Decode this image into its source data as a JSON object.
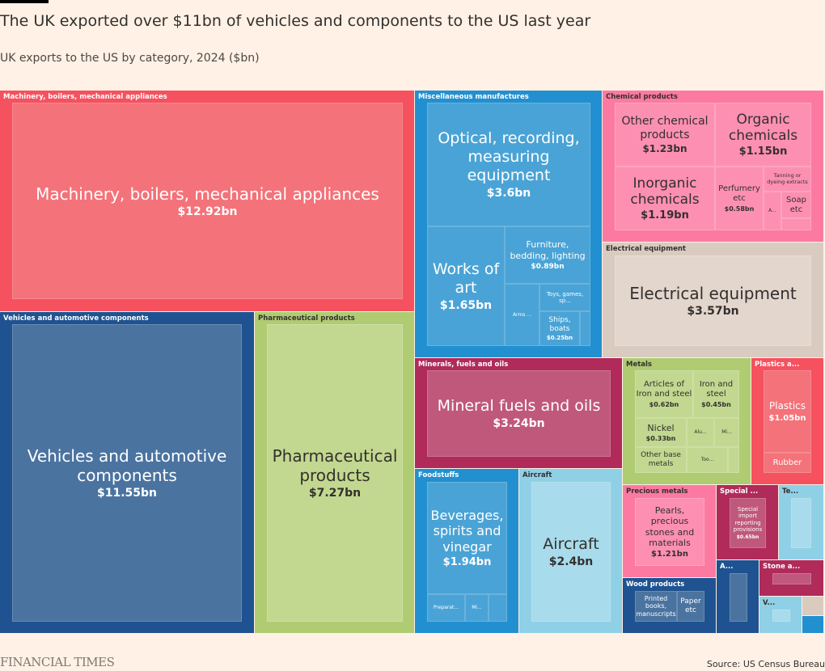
{
  "header": {
    "title": "The UK exported over $11bn of vehicles and components to the US last year",
    "subtitle": "UK exports to the US by category, 2024 ($bn)"
  },
  "footer": {
    "logo": "FINANCIAL TIMES",
    "source": "Source: US Census Bureau"
  },
  "chart_data": {
    "type": "treemap",
    "title": "The UK exported over $11bn of vehicles and components to the US last year",
    "subtitle": "UK exports to the US by category, 2024 ($bn)",
    "unit": "$bn",
    "groups": [
      {
        "id": "mach",
        "label": "Machinery, boilers, mechanical appliances",
        "color": "#f5515f",
        "inner": "#f47279",
        "text": "#ffffff",
        "children": [
          {
            "id": "mach1",
            "label": "Machinery, boilers, mechanical appliances",
            "value_label": "$12.92bn",
            "value": 12.92
          }
        ]
      },
      {
        "id": "veh",
        "label": "Vehicles and automotive components",
        "color": "#1f5290",
        "inner": "#4a73a0",
        "text": "#ffffff",
        "children": [
          {
            "id": "veh1",
            "label": "Vehicles and automotive components",
            "value_label": "$11.55bn",
            "value": 11.55
          }
        ]
      },
      {
        "id": "pha",
        "label": "Pharmaceutical products",
        "color": "#b0cc72",
        "inner": "#c2d890",
        "text": "#33302e",
        "children": [
          {
            "id": "pha1",
            "label": "Pharmaceutical products",
            "value_label": "$7.27bn",
            "value": 7.27
          }
        ]
      },
      {
        "id": "misc",
        "label": "Miscellaneous manufactures",
        "color": "#2290d0",
        "inner": "#4aa3d6",
        "text": "#ffffff",
        "children": [
          {
            "id": "opt",
            "label": "Optical, recording, measuring equipment",
            "value_label": "$3.6bn",
            "value": 3.6
          },
          {
            "id": "art",
            "label": "Works of art",
            "value_label": "$1.65bn",
            "value": 1.65
          },
          {
            "id": "fur",
            "label": "Furniture, bedding, lighting",
            "value_label": "$0.89bn",
            "value": 0.89
          },
          {
            "id": "arms",
            "label": "Arms ...",
            "value_label": ""
          },
          {
            "id": "toys",
            "label": "Toys, games, sp...",
            "value_label": ""
          },
          {
            "id": "ships",
            "label": "Ships, boats",
            "value_label": "$0.25bn",
            "value": 0.25
          }
        ]
      },
      {
        "id": "chem",
        "label": "Chemical products",
        "color": "#fc7aa2",
        "inner": "#fd90b2",
        "text": "#33302e",
        "children": [
          {
            "id": "och",
            "label": "Other chemical products",
            "value_label": "$1.23bn",
            "value": 1.23
          },
          {
            "id": "org",
            "label": "Organic chemicals",
            "value_label": "$1.15bn",
            "value": 1.15
          },
          {
            "id": "inorg",
            "label": "Inorganic chemicals",
            "value_label": "$1.19bn",
            "value": 1.19
          },
          {
            "id": "perf",
            "label": "Perfumery etc",
            "value_label": "$0.58bn",
            "value": 0.58
          },
          {
            "id": "tan",
            "label": "Tanning or dyeing extracts",
            "value_label": ""
          },
          {
            "id": "chA",
            "label": "A...",
            "value_label": ""
          },
          {
            "id": "soap",
            "label": "Soap etc",
            "value_label": ""
          }
        ]
      },
      {
        "id": "elec",
        "label": "Electrical equipment",
        "color": "#d9cbc0",
        "inner": "#e3d6cd",
        "text": "#33302e",
        "children": [
          {
            "id": "elec1",
            "label": "Electrical equipment",
            "value_label": "$3.57bn",
            "value": 3.57
          }
        ]
      },
      {
        "id": "min",
        "label": "Minerals, fuels and oils",
        "color": "#b02a5a",
        "inner": "#c0587c",
        "text": "#ffffff",
        "children": [
          {
            "id": "min1",
            "label": "Mineral fuels and oils",
            "value_label": "$3.24bn",
            "value": 3.24
          }
        ]
      },
      {
        "id": "food",
        "label": "Foodstuffs",
        "color": "#2290d0",
        "inner": "#4aa3d6",
        "text": "#ffffff",
        "children": [
          {
            "id": "bev",
            "label": "Beverages, spirits and vinegar",
            "value_label": "$1.94bn",
            "value": 1.94
          },
          {
            "id": "prep",
            "label": "Preparat...",
            "value_label": ""
          },
          {
            "id": "fmi",
            "label": "Mi...",
            "value_label": ""
          }
        ]
      },
      {
        "id": "air",
        "label": "Aircraft",
        "color": "#8fd0e6",
        "inner": "#a8dbeb",
        "text": "#33302e",
        "children": [
          {
            "id": "air1",
            "label": "Aircraft",
            "value_label": "$2.4bn",
            "value": 2.4
          }
        ]
      },
      {
        "id": "met",
        "label": "Metals",
        "color": "#b0cc72",
        "inner": "#c2d890",
        "text": "#33302e",
        "children": [
          {
            "id": "artis",
            "label": "Articles of Iron and steel",
            "value_label": "$0.62bn",
            "value": 0.62
          },
          {
            "id": "iron",
            "label": "Iron and steel",
            "value_label": "$0.45bn",
            "value": 0.45
          },
          {
            "id": "nick",
            "label": "Nickel",
            "value_label": "$0.33bn",
            "value": 0.33
          },
          {
            "id": "alu",
            "label": "Alu...",
            "value_label": ""
          },
          {
            "id": "mmi",
            "label": "Mi...",
            "value_label": ""
          },
          {
            "id": "obm",
            "label": "Other base metals",
            "value_label": ""
          },
          {
            "id": "too",
            "label": "Too...",
            "value_label": ""
          }
        ]
      },
      {
        "id": "pla",
        "label": "Plastics a...",
        "color": "#f5515f",
        "inner": "#f47279",
        "text": "#ffffff",
        "children": [
          {
            "id": "pla1",
            "label": "Plastics",
            "value_label": "$1.05bn",
            "value": 1.05
          },
          {
            "id": "rub",
            "label": "Rubber",
            "value_label": ""
          }
        ]
      },
      {
        "id": "prec",
        "label": "Precious metals",
        "color": "#fc7aa2",
        "inner": "#fd90b2",
        "text": "#33302e",
        "children": [
          {
            "id": "pearl",
            "label": "Pearls, precious stones and materials",
            "value_label": "$1.21bn",
            "value": 1.21
          }
        ]
      },
      {
        "id": "spec",
        "label": "Special ...",
        "color": "#b02a5a",
        "inner": "#c0587c",
        "text": "#ffffff",
        "children": [
          {
            "id": "spec1",
            "label": "Special import reporting provisions",
            "value_label": "$0.65bn",
            "value": 0.65
          }
        ]
      },
      {
        "id": "te",
        "label": "Te...",
        "color": "#8fd0e6",
        "inner": "#a8dbeb",
        "text": "#33302e",
        "children": []
      },
      {
        "id": "wood",
        "label": "Wood products",
        "color": "#1f5290",
        "inner": "#4a73a0",
        "text": "#ffffff",
        "children": [
          {
            "id": "books",
            "label": "Printed books, manuscripts",
            "value_label": ""
          },
          {
            "id": "paper",
            "label": "Paper etc",
            "value_label": ""
          }
        ]
      },
      {
        "id": "aa",
        "label": "A...",
        "color": "#1f5290",
        "inner": "#4a73a0",
        "text": "#ffffff",
        "children": []
      },
      {
        "id": "stone",
        "label": "Stone a...",
        "color": "#b02a5a",
        "inner": "#c0587c",
        "text": "#ffffff",
        "children": []
      },
      {
        "id": "vv",
        "label": "V...",
        "color": "#8fd0e6",
        "inner": "#a8dbeb",
        "text": "#33302e",
        "children": []
      },
      {
        "id": "beige",
        "label": "",
        "color": "#d9cbc0",
        "inner": "#d9cbc0",
        "text": "#33302e",
        "children": []
      },
      {
        "id": "blue",
        "label": "",
        "color": "#2290d0",
        "inner": "#2290d0",
        "text": "#ffffff",
        "children": []
      }
    ]
  }
}
